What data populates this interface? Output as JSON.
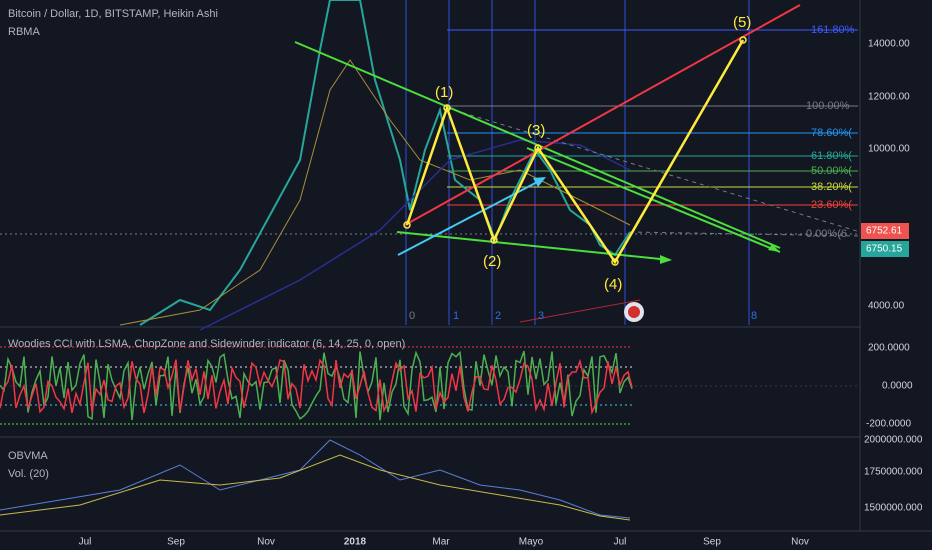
{
  "header": {
    "title": "Bitcoin / Dollar, 1D, BITSTAMP, Heikin Ashi",
    "indicator": "RBMA"
  },
  "price_axis": {
    "labels": [
      "14000.00",
      "12000.00",
      "10000.00",
      "4000.00"
    ],
    "last_price": "6752.61",
    "prev_price": "6750.15"
  },
  "fib_levels": [
    "161.80%",
    "100.00%",
    "78.60%(",
    "61.80%(",
    "50.00%(",
    "38.20%(",
    "23.60%(",
    "0.00%(6"
  ],
  "waves": [
    "(1)",
    "(2)",
    "(3)",
    "(4)",
    "(5)"
  ],
  "time_fib": [
    "0",
    "1",
    "2",
    "3",
    "8"
  ],
  "cci": {
    "title": "Woodies CCI with LSMA, ChopZone and Sidewinder indicator (6, 14, 25, 0, open)",
    "axis": [
      "200.0000",
      "0.0000",
      "-200.0000"
    ]
  },
  "obv": {
    "title": "OBVMA",
    "volume": "Vol. (20)",
    "axis": [
      "2000000.000",
      "1750000.000",
      "1500000.000"
    ]
  },
  "time_axis": [
    "Jul",
    "Sep",
    "Nov",
    "2018",
    "Mar",
    "Mayo",
    "Jul",
    "Sep",
    "Nov"
  ]
}
